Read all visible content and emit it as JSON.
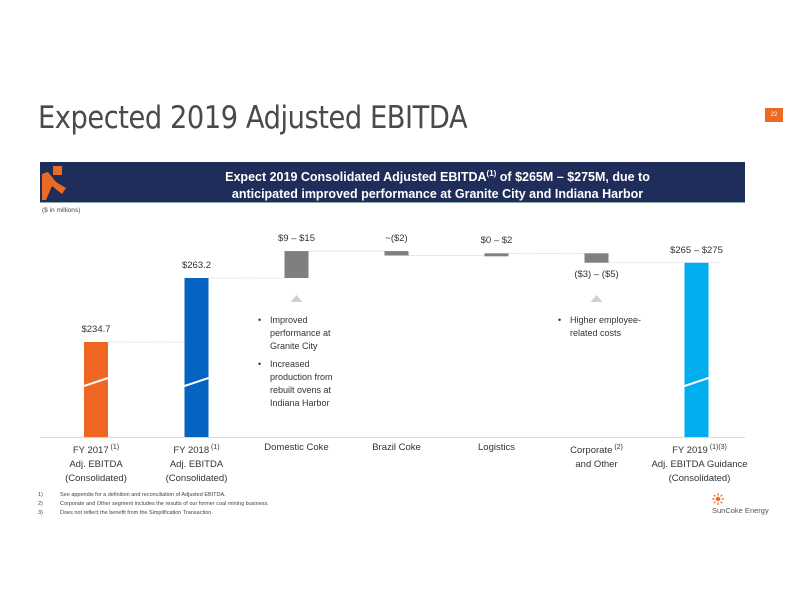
{
  "page": {
    "title": "Expected 2019 Adjusted EBITDA",
    "page_number": "22",
    "banner_line1": "Expect 2019 Consolidated Adjusted EBITDA",
    "banner_sup": "(1)",
    "banner_line1_tail": " of $265M – $275M, due to",
    "banner_line2": "anticipated improved performance at Granite City and Indiana Harbor",
    "units_note": "($ in millions)",
    "brand": "SunCoke Energy",
    "colors": {
      "accent": "#ec6a23",
      "navy": "#1f2d5a",
      "fy2017": "#ef6522",
      "fy2018": "#0563c1",
      "fy2019": "#00adef",
      "delta": "#7f7f7f"
    }
  },
  "chart_data": {
    "type": "bar",
    "subtype": "waterfall",
    "title": "Expected 2019 Adjusted EBITDA",
    "ylabel": "$ in millions",
    "ylim": [
      200,
      280
    ],
    "categories": [
      {
        "lines": [
          "FY 2017",
          "Adj. EBITDA",
          "(Consolidated)"
        ],
        "sup": "(1)"
      },
      {
        "lines": [
          "FY 2018",
          "Adj. EBITDA",
          "(Consolidated)"
        ],
        "sup": "(1)"
      },
      {
        "lines": [
          "Domestic Coke"
        ],
        "sup": ""
      },
      {
        "lines": [
          "Brazil Coke"
        ],
        "sup": ""
      },
      {
        "lines": [
          "Logistics"
        ],
        "sup": ""
      },
      {
        "lines": [
          "Corporate",
          "and Other"
        ],
        "sup": "(2)"
      },
      {
        "lines": [
          "FY 2019",
          "Adj. EBITDA Guidance",
          "(Consolidated)"
        ],
        "sup": "(1)(3)"
      }
    ],
    "bars": [
      {
        "name": "FY 2017",
        "kind": "total",
        "start": 0,
        "end": 234.7,
        "label": "$234.7",
        "label_pos": "above"
      },
      {
        "name": "FY 2018",
        "kind": "total",
        "start": 0,
        "end": 263.2,
        "label": "$263.2",
        "label_pos": "above"
      },
      {
        "name": "Domestic Coke",
        "kind": "delta",
        "start": 263.2,
        "end": 275.2,
        "label": "$9 – $15",
        "label_pos": "above"
      },
      {
        "name": "Brazil Coke",
        "kind": "delta",
        "start": 275.2,
        "end": 273.2,
        "label": "~($2)",
        "label_pos": "above"
      },
      {
        "name": "Logistics",
        "kind": "delta",
        "start": 273.2,
        "end": 274.2,
        "label": "$0 – $2",
        "label_pos": "above"
      },
      {
        "name": "Corporate and Other",
        "kind": "delta",
        "start": 274.2,
        "end": 270.0,
        "label": "($3) – ($5)",
        "label_pos": "below"
      },
      {
        "name": "FY 2019",
        "kind": "total",
        "start": 0,
        "end": 270.0,
        "label": "$265 – $275",
        "label_pos": "above"
      }
    ],
    "axis_break": true,
    "annotations": [
      {
        "category": "Domestic Coke",
        "bullets": [
          "Improved performance at Granite City",
          "Increased production from rebuilt ovens at Indiana Harbor"
        ]
      },
      {
        "category": "Corporate and Other",
        "bullets": [
          "Higher employee-related costs"
        ]
      }
    ]
  },
  "notes": {
    "domestic": [
      "Improved\nperformance at\nGranite City",
      "Increased\nproduction from\nrebuilt ovens at\nIndiana Harbor"
    ],
    "corporate": [
      "Higher employee-\nrelated costs"
    ]
  },
  "footnotes": [
    {
      "n": "1)",
      "text": "See appendix for a definition and reconciliation of Adjusted EBITDA."
    },
    {
      "n": "2)",
      "text": "Corporate and Other segment includes the results of our former coal mining business."
    },
    {
      "n": "3)",
      "text": "Does not reflect the benefit from the Simplification Transaction."
    }
  ]
}
